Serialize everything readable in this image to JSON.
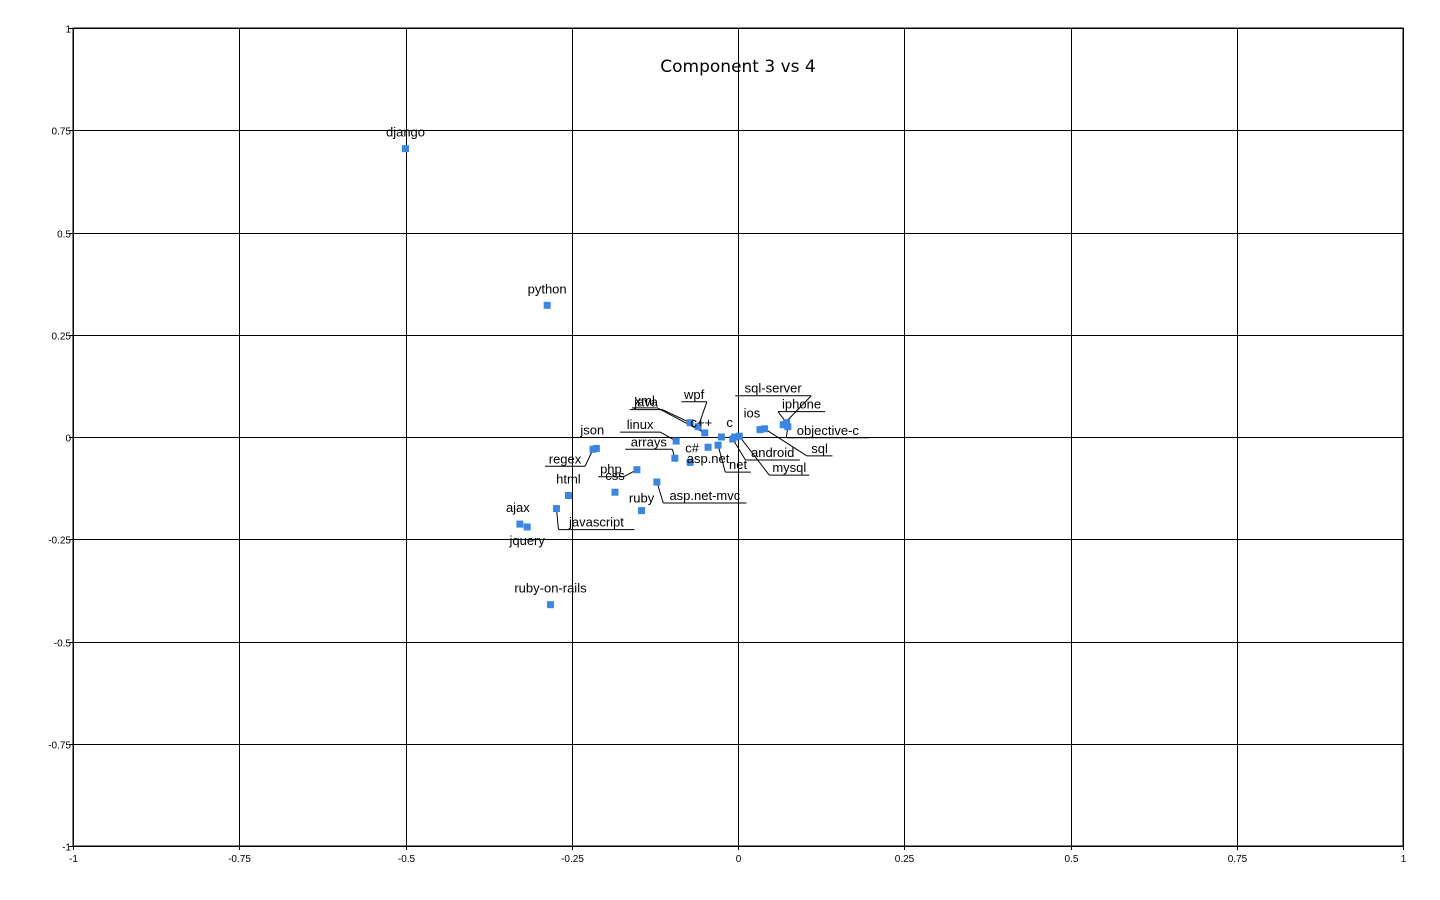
{
  "chart_data": {
    "type": "scatter",
    "title": "Component 3 vs 4",
    "xlim": [
      -1,
      1
    ],
    "ylim": [
      -1,
      1
    ],
    "x_ticks": [
      "-1",
      "-0.75",
      "-0.5",
      "-0.25",
      "0",
      "0.25",
      "0.5",
      "0.75",
      "1"
    ],
    "y_ticks": [
      "1",
      "0.75",
      "0.5",
      "0.25",
      "0",
      "-0.25",
      "-0.5",
      "-0.75",
      "-1"
    ],
    "grid": true,
    "marker_color": "#3b86e0",
    "points": [
      {
        "label": "django",
        "x": -0.5,
        "y": 0.705
      },
      {
        "label": "python",
        "x": -0.287,
        "y": 0.322
      },
      {
        "label": "json",
        "x": -0.213,
        "y": -0.028
      },
      {
        "label": "regex",
        "x": -0.218,
        "y": -0.03
      },
      {
        "label": "html",
        "x": -0.255,
        "y": -0.143
      },
      {
        "label": "javascript",
        "x": -0.273,
        "y": -0.175
      },
      {
        "label": "ajax",
        "x": -0.328,
        "y": -0.213
      },
      {
        "label": "jquery",
        "x": -0.317,
        "y": -0.22
      },
      {
        "label": "ruby-on-rails",
        "x": -0.282,
        "y": -0.41
      },
      {
        "label": "css",
        "x": -0.185,
        "y": -0.135
      },
      {
        "label": "ruby",
        "x": -0.145,
        "y": -0.18
      },
      {
        "label": "php",
        "x": -0.152,
        "y": -0.08
      },
      {
        "label": "arrays",
        "x": -0.095,
        "y": -0.052
      },
      {
        "label": "c#",
        "x": -0.072,
        "y": -0.062
      },
      {
        "label": "asp.net",
        "x": -0.045,
        "y": -0.025
      },
      {
        "label": "asp.net-mvc",
        "x": -0.122,
        "y": -0.11
      },
      {
        "label": "linux",
        "x": -0.093,
        "y": -0.01
      },
      {
        "label": "xml",
        "x": -0.05,
        "y": 0.01
      },
      {
        "label": "java",
        "x": -0.072,
        "y": 0.035
      },
      {
        "label": "wpf",
        "x": -0.06,
        "y": 0.025
      },
      {
        "label": "c++",
        "x": -0.025,
        "y": 0.0
      },
      {
        "label": "c",
        "x": -0.005,
        "y": 0.0
      },
      {
        "label": "net",
        "x": -0.03,
        "y": -0.02
      },
      {
        "label": "android",
        "x": -0.008,
        "y": -0.005
      },
      {
        "label": "mysql",
        "x": 0.002,
        "y": 0.002
      },
      {
        "label": "ios",
        "x": 0.033,
        "y": 0.018
      },
      {
        "label": "sql-server",
        "x": 0.068,
        "y": 0.03
      },
      {
        "label": "iphone",
        "x": 0.073,
        "y": 0.035
      },
      {
        "label": "objective-c",
        "x": 0.075,
        "y": 0.025
      },
      {
        "label": "sql",
        "x": 0.04,
        "y": 0.02
      }
    ]
  }
}
